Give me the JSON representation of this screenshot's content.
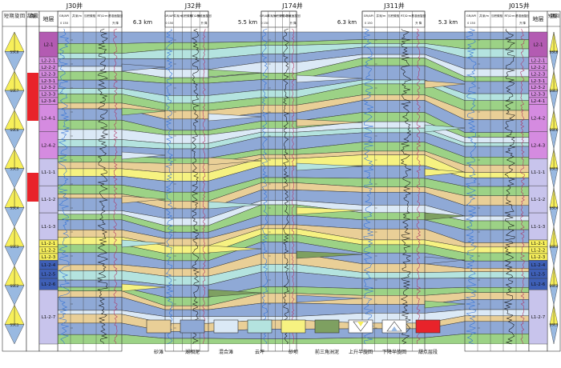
{
  "colors": {
    "sand_bar": "#e9cf97",
    "lake_mud": "#8fa9d6",
    "mixed_flat": "#dbe9f6",
    "cloud_flat": "#b4e3df",
    "sand_dam": "#f6f281",
    "delta_mud": "#7ea061",
    "green_layer": "#9cd286",
    "rising": "#f7ef5a",
    "falling": "#99b9e1",
    "sweet_spot": "#e8232a",
    "purple_dark": "#b35bb2",
    "purple_mid": "#d58be0",
    "purple_light": "#e9c7ee",
    "lavender": "#c8c4ec",
    "blue_stack": "#3e5fb6"
  },
  "wells": [
    {
      "name": "J30井",
      "columns": [
        "GR/API",
        "井深/m",
        "沉积微相",
        "RT/Ω·m",
        "基准面旋回"
      ],
      "sub": [
        "0  150",
        "",
        "",
        "",
        "升  降"
      ]
    },
    {
      "name": "J32井",
      "columns": [
        "GR/API",
        "井深/m",
        "沉积微相",
        "RT/Ω·m",
        "基准面旋回"
      ],
      "sub": [
        "0  150",
        "",
        "",
        "",
        "升  降"
      ]
    },
    {
      "name": "J174井",
      "columns": [
        "GR/API",
        "井深/m",
        "沉积微相",
        "RT/Ω·m",
        "基准面旋回"
      ],
      "sub": [
        "0  150",
        "",
        "",
        "",
        "升  降"
      ]
    },
    {
      "name": "J311井",
      "columns": [
        "GR/API",
        "井深/m",
        "沉积微相",
        "RT/Ω·m",
        "基准面旋回"
      ],
      "sub": [
        "0  150",
        "",
        "",
        "",
        "升  降"
      ]
    },
    {
      "name": "J015井",
      "columns": [
        "GR/API",
        "井深/m",
        "沉积微相",
        "RT/Ω·m",
        "基准面旋回"
      ],
      "sub": [
        "0  150",
        "",
        "",
        "",
        "升  降"
      ]
    }
  ],
  "distances": [
    "6.3 km",
    "5.5 km",
    "6.3 km",
    "5.3 km"
  ],
  "left_headers": {
    "cycle": "短期旋回",
    "sweet": "甜点层段",
    "strata": "地层"
  },
  "right_headers": {
    "strata": "地层",
    "cycle": "短期旋回"
  },
  "left_strata": [
    "L2-1",
    "L2-2-1",
    "L2-2-2",
    "L2-2-3",
    "L2-3-1",
    "L2-3-2",
    "L2-3-3",
    "L2-3-4",
    "L2-4-1",
    "L2-4-2",
    "L1-1-1",
    "L1-1-2",
    "L1-1-3",
    "L1-2-1",
    "L1-2-2",
    "L1-2-3",
    "L1-2-4",
    "L1-2-5",
    "L1-2-6",
    "L1-2-7"
  ],
  "right_strata": [
    "L2-1",
    "L2-2-1",
    "L2-2-2",
    "L2-2-3",
    "L2-3-1",
    "L2-3-2",
    "L2-3-3",
    "L2-4-1",
    "L2-4-2",
    "L2-4-3",
    "L1-1-1",
    "L1-1-2",
    "L1-1-3",
    "L1-2-1",
    "L1-2-2",
    "L1-2-3",
    "L1-2-4",
    "L1-2-5",
    "L1-2-6",
    "L1-2-7"
  ],
  "left_cycles": [
    "SSC8",
    "SSC7",
    "SSC6",
    "SSC5",
    "SSC4",
    "SSC3",
    "SSC2",
    "SSC1"
  ],
  "right_cycles": [
    "SSC8",
    "SSC7",
    "SSC6",
    "SSC5",
    "SSC4",
    "SSC3",
    "SSC2",
    "SSC1"
  ],
  "legend": [
    {
      "label": "砂滩",
      "color": "#e9cf97"
    },
    {
      "label": "湖相泥",
      "color": "#8fa9d6"
    },
    {
      "label": "混合滩",
      "color": "#dbe9f6"
    },
    {
      "label": "云坪",
      "color": "#b4e3df"
    },
    {
      "label": "砂坝",
      "color": "#f6f281"
    },
    {
      "label": "前三角洲泥",
      "color": "#7ea061"
    },
    {
      "label": "上升半旋回",
      "color": "#f7ef5a"
    },
    {
      "label": "下降半旋回",
      "color": "#99b9e1"
    },
    {
      "label": "甜点层段",
      "color": "#e8232a"
    }
  ]
}
